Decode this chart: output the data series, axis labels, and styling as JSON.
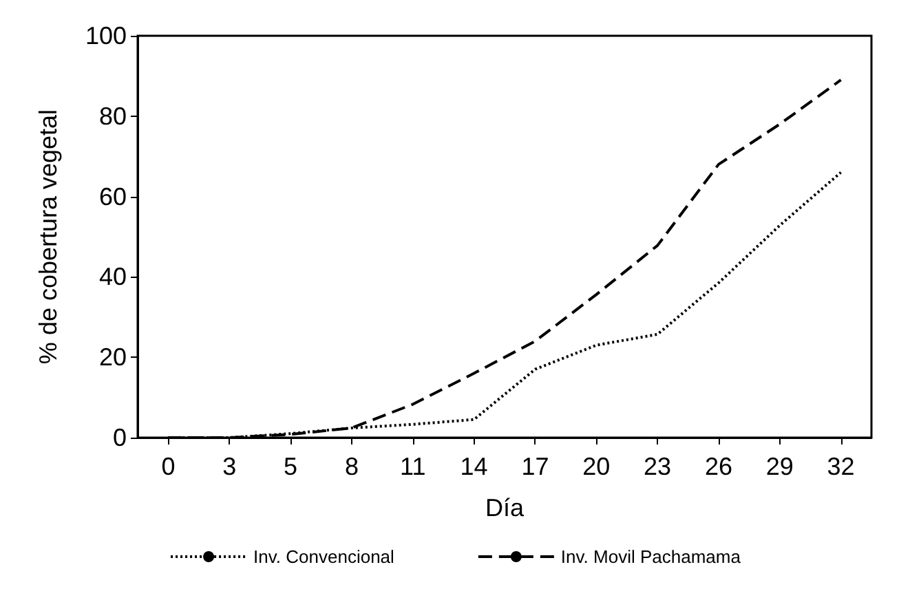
{
  "chart_data": {
    "type": "line",
    "xlabel": "Día",
    "ylabel": "% de cobertura vegetal",
    "categories": [
      "0",
      "3",
      "5",
      "8",
      "11",
      "14",
      "17",
      "20",
      "23",
      "26",
      "29",
      "32"
    ],
    "ylim": [
      0,
      100
    ],
    "yticks": [
      0,
      20,
      40,
      60,
      80,
      100
    ],
    "grid": false,
    "legend": "bottom",
    "marker": "none",
    "series": [
      {
        "name": "Inv. Convencional",
        "color": "#000000",
        "line_style": "dotted",
        "values": [
          0,
          0,
          1,
          2.4,
          3.3,
          4.5,
          17,
          23,
          25.7,
          38.5,
          52.8,
          66
        ]
      },
      {
        "name": "Inv. Movil Pachamama",
        "color": "#000000",
        "line_style": "dashed",
        "values": [
          0,
          0,
          0.8,
          2.4,
          8.3,
          16,
          24,
          35.6,
          47.8,
          68,
          78,
          89
        ]
      }
    ]
  }
}
